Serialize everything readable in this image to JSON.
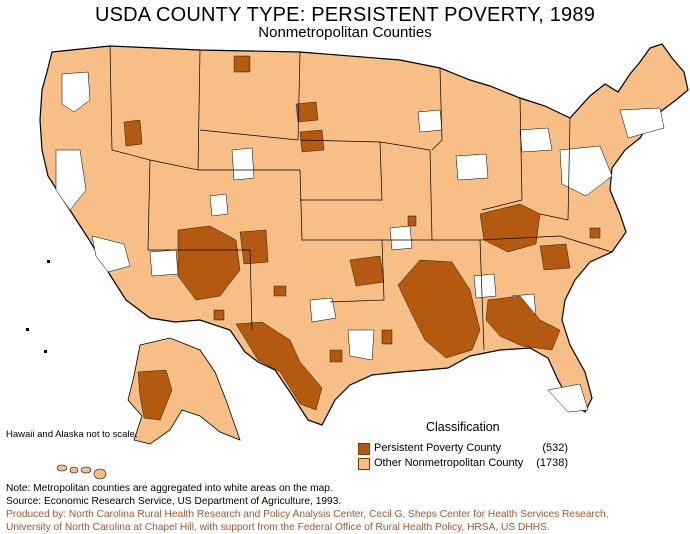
{
  "title": "USDA COUNTY TYPE: PERSISTENT POVERTY, 1989",
  "subtitle": "Nonmetropolitan  Counties",
  "scale_note": "Hawaii and Alaska not to scale.",
  "legend": {
    "title": "Classification",
    "items": [
      {
        "label": "Persistent Poverty County",
        "count": "(532)",
        "color": "#b35a10"
      },
      {
        "label": "Other Nonmetropolitan County",
        "count": "(1738)",
        "color": "#f7be86"
      }
    ]
  },
  "notes": {
    "note": "Note: Metropolitan counties are aggregated into white areas on the map.",
    "source": "Source: Economic Research Service, US Department of Agriculture, 1993.",
    "credit_line1": "Produced by: North Carolina Rural Health Research and Policy Analysis Center, Cecil G. Sheps Center for Health Services Research,",
    "credit_line2": "University of North Carolina at Chapel Hill, with support from the Federal Office of Rural Health Policy, HRSA, US DHHS."
  },
  "colors": {
    "persistent_poverty": "#b35a10",
    "other_nonmetro": "#f7be86",
    "metro": "#ffffff",
    "borders": "#000000"
  }
}
